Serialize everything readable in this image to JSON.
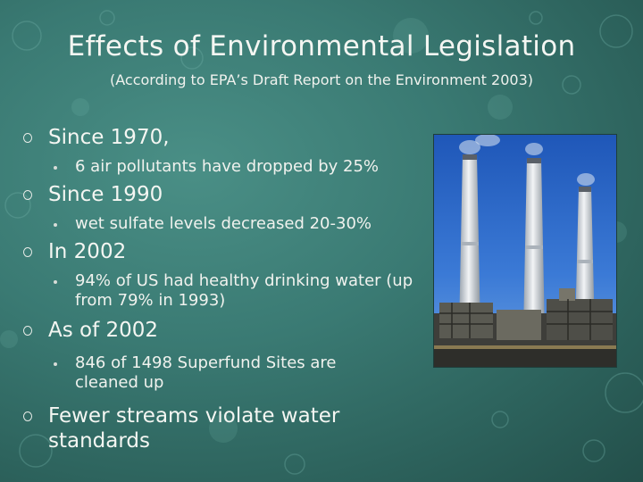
{
  "slide": {
    "title": "Effects of Environmental Legislation",
    "subtitle": "(According to EPA’s Draft Report on the Environment 2003)",
    "bullets": [
      {
        "text": "Since 1970,",
        "sub": [
          "6 air pollutants have dropped by 25%"
        ]
      },
      {
        "text": "Since 1990",
        "sub": [
          "wet sulfate levels decreased 20-30%"
        ]
      },
      {
        "text": "In 2002",
        "sub": [
          "94% of US had healthy drinking water (up from 79% in 1993)"
        ]
      },
      {
        "text": "As of 2002",
        "sub": [
          "846 of 1498 Superfund Sites are cleaned up"
        ]
      },
      {
        "text": "Fewer streams violate water standards",
        "sub": []
      }
    ],
    "image": {
      "icon": "smokestacks-photo"
    }
  },
  "colors": {
    "background": "#3a7a73",
    "text": "#f4f6f2"
  }
}
